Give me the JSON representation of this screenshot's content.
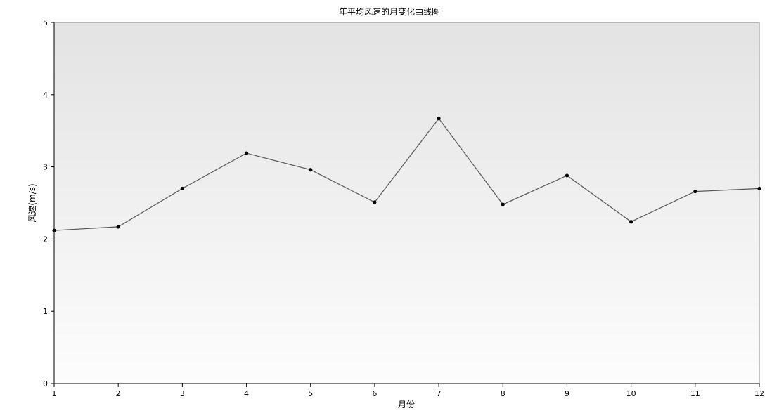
{
  "chart_data": {
    "type": "line",
    "title": "年平均风速的月变化曲线图",
    "xlabel": "月份",
    "ylabel": "风速(m/s)",
    "x": [
      1,
      2,
      3,
      4,
      5,
      6,
      7,
      8,
      9,
      10,
      11,
      12
    ],
    "x_ticks": [
      "1",
      "2",
      "3",
      "4",
      "5",
      "6",
      "7",
      "8",
      "9",
      "10",
      "11",
      "12"
    ],
    "y_ticks": [
      "0",
      "1",
      "2",
      "3",
      "4",
      "5"
    ],
    "xlim": [
      1,
      12
    ],
    "ylim": [
      0,
      5
    ],
    "grid": false,
    "series": [
      {
        "values": [
          2.12,
          2.17,
          2.7,
          3.19,
          2.96,
          2.51,
          3.67,
          2.48,
          2.88,
          2.24,
          2.66,
          2.7
        ]
      }
    ],
    "colors": {
      "line": "#555555",
      "marker": "#000000",
      "axis": "#000000"
    }
  }
}
